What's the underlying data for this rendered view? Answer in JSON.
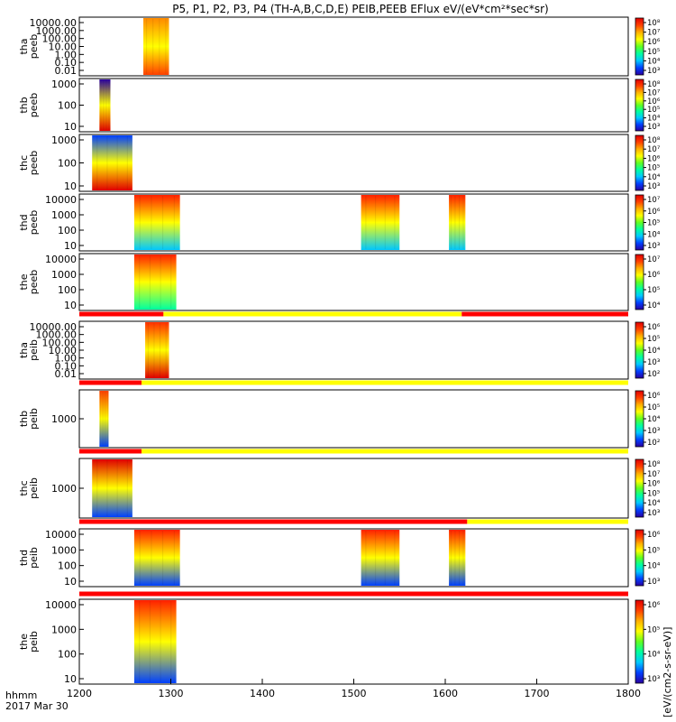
{
  "chart_data": {
    "type": "heatmap",
    "title": "P5, P1, P2, P3, P4 (TH-A,B,C,D,E) PEIB,PEEB EFlux eV/(eV*cm²*sec*sr)",
    "x_axis": {
      "ticks": [
        "1200",
        "1300",
        "1400",
        "1500",
        "1600",
        "1700",
        "1800"
      ],
      "range": [
        1200,
        1800
      ],
      "label_line1": "hhmm",
      "label_line2": "2017 Mar 30"
    },
    "colorbar_label": "[eV/(cm2-s-sr-eV)]",
    "colormap": [
      "#2a00a0",
      "#0040ff",
      "#00c8ff",
      "#00ffa0",
      "#60ff20",
      "#ffff00",
      "#ffb000",
      "#ff4000",
      "#e00000"
    ],
    "panels": [
      {
        "probe": "tha",
        "product": "peeb",
        "yticks": [
          "10000.00",
          "1000.00",
          "100.00",
          "10.00",
          "1.00",
          "0.10",
          "0.01"
        ],
        "ytype": "log-decimals",
        "cbticks": [
          "10⁸",
          "10⁷",
          "10⁶",
          "10⁵",
          "10⁴",
          "10³"
        ],
        "coverage": [
          [
            1270,
            1298
          ]
        ],
        "bottom_color": "#ff4000",
        "top_color": "#ff8a00"
      },
      {
        "probe": "thb",
        "product": "peeb",
        "yticks": [
          "1000",
          "100",
          "10"
        ],
        "ytype": "log",
        "cbticks": [
          "10⁸",
          "10⁷",
          "10⁶",
          "10⁵",
          "10⁴",
          "10³"
        ],
        "coverage": [
          [
            1222,
            1234
          ]
        ],
        "bottom_color": "#e00000",
        "top_color": "#2a00a0"
      },
      {
        "probe": "thc",
        "product": "peeb",
        "yticks": [
          "1000",
          "100",
          "10"
        ],
        "ytype": "log",
        "cbticks": [
          "10⁸",
          "10⁷",
          "10⁶",
          "10⁵",
          "10⁴",
          "10³"
        ],
        "coverage": [
          [
            1214,
            1258
          ]
        ],
        "bottom_color": "#e00000",
        "top_color": "#0040ff"
      },
      {
        "probe": "thd",
        "product": "peeb",
        "yticks": [
          "10000",
          "1000",
          "100",
          "10"
        ],
        "ytype": "log",
        "cbticks": [
          "10⁷",
          "10⁶",
          "10⁵",
          "10⁴",
          "10³"
        ],
        "coverage": [
          [
            1260,
            1310
          ],
          [
            1508,
            1550
          ],
          [
            1604,
            1622
          ]
        ],
        "bottom_color": "#00c8ff",
        "top_color": "#ff2000"
      },
      {
        "probe": "the",
        "product": "peeb",
        "yticks": [
          "10000",
          "1000",
          "100",
          "10"
        ],
        "ytype": "log",
        "cbticks": [
          "10⁷",
          "10⁶",
          "10⁵",
          "10⁴"
        ],
        "coverage": [
          [
            1260,
            1306
          ]
        ],
        "bottom_color": "#00ffa0",
        "top_color": "#ff2000"
      },
      {
        "probe": "tha",
        "product": "peib",
        "yticks": [
          "10000.00",
          "1000.00",
          "100.00",
          "10.00",
          "1.00",
          "0.10",
          "0.01"
        ],
        "ytype": "log-decimals",
        "cbticks": [
          "10⁶",
          "10⁵",
          "10⁴",
          "10³",
          "10²"
        ],
        "coverage": [
          [
            1272,
            1298
          ]
        ],
        "bottom_color": "#e00000",
        "top_color": "#ff3000"
      },
      {
        "probe": "thb",
        "product": "peib",
        "yticks": [
          "1000"
        ],
        "ytype": "log",
        "cbticks": [
          "10⁶",
          "10⁵",
          "10⁴",
          "10³",
          "10²"
        ],
        "coverage": [
          [
            1222,
            1232
          ]
        ],
        "bottom_color": "#0040ff",
        "top_color": "#ff4000"
      },
      {
        "probe": "thc",
        "product": "peib",
        "yticks": [
          "1000"
        ],
        "ytype": "log",
        "cbticks": [
          "10⁸",
          "10⁷",
          "10⁶",
          "10⁵",
          "10⁴",
          "10³"
        ],
        "coverage": [
          [
            1214,
            1258
          ]
        ],
        "bottom_color": "#0040ff",
        "top_color": "#e00000"
      },
      {
        "probe": "thd",
        "product": "peib",
        "yticks": [
          "10000",
          "1000",
          "100",
          "10"
        ],
        "ytype": "log",
        "cbticks": [
          "10⁶",
          "10⁵",
          "10⁴",
          "10³"
        ],
        "coverage": [
          [
            1260,
            1310
          ],
          [
            1508,
            1550
          ],
          [
            1604,
            1622
          ]
        ],
        "bottom_color": "#0040ff",
        "top_color": "#ff2000"
      },
      {
        "probe": "the",
        "product": "peib",
        "yticks": [
          "10000",
          "1000",
          "100",
          "10"
        ],
        "ytype": "log",
        "cbticks": [
          "10⁶",
          "10⁵",
          "10⁴",
          "10³"
        ],
        "coverage": [
          [
            1260,
            1306
          ]
        ],
        "bottom_color": "#0040ff",
        "top_color": "#ff2000"
      }
    ],
    "mode_bars": [
      {
        "after_panel": 4,
        "segments": [
          {
            "x0": 1200,
            "x1": 1292,
            "color": "#ff0000"
          },
          {
            "x0": 1292,
            "x1": 1618,
            "color": "#ffff00"
          },
          {
            "x0": 1618,
            "x1": 1800,
            "color": "#ff0000"
          }
        ]
      },
      {
        "after_panel": 5,
        "segments": [
          {
            "x0": 1200,
            "x1": 1268,
            "color": "#ff0000"
          },
          {
            "x0": 1268,
            "x1": 1800,
            "color": "#ffff00"
          }
        ]
      },
      {
        "after_panel": 6,
        "segments": [
          {
            "x0": 1200,
            "x1": 1268,
            "color": "#ff0000"
          },
          {
            "x0": 1268,
            "x1": 1800,
            "color": "#ffff00"
          }
        ]
      },
      {
        "after_panel": 7,
        "segments": [
          {
            "x0": 1200,
            "x1": 1624,
            "color": "#ff0000"
          },
          {
            "x0": 1624,
            "x1": 1800,
            "color": "#ffff00"
          }
        ]
      },
      {
        "after_panel": 8,
        "segments": [
          {
            "x0": 1200,
            "x1": 1800,
            "color": "#ff0000"
          }
        ]
      }
    ]
  }
}
